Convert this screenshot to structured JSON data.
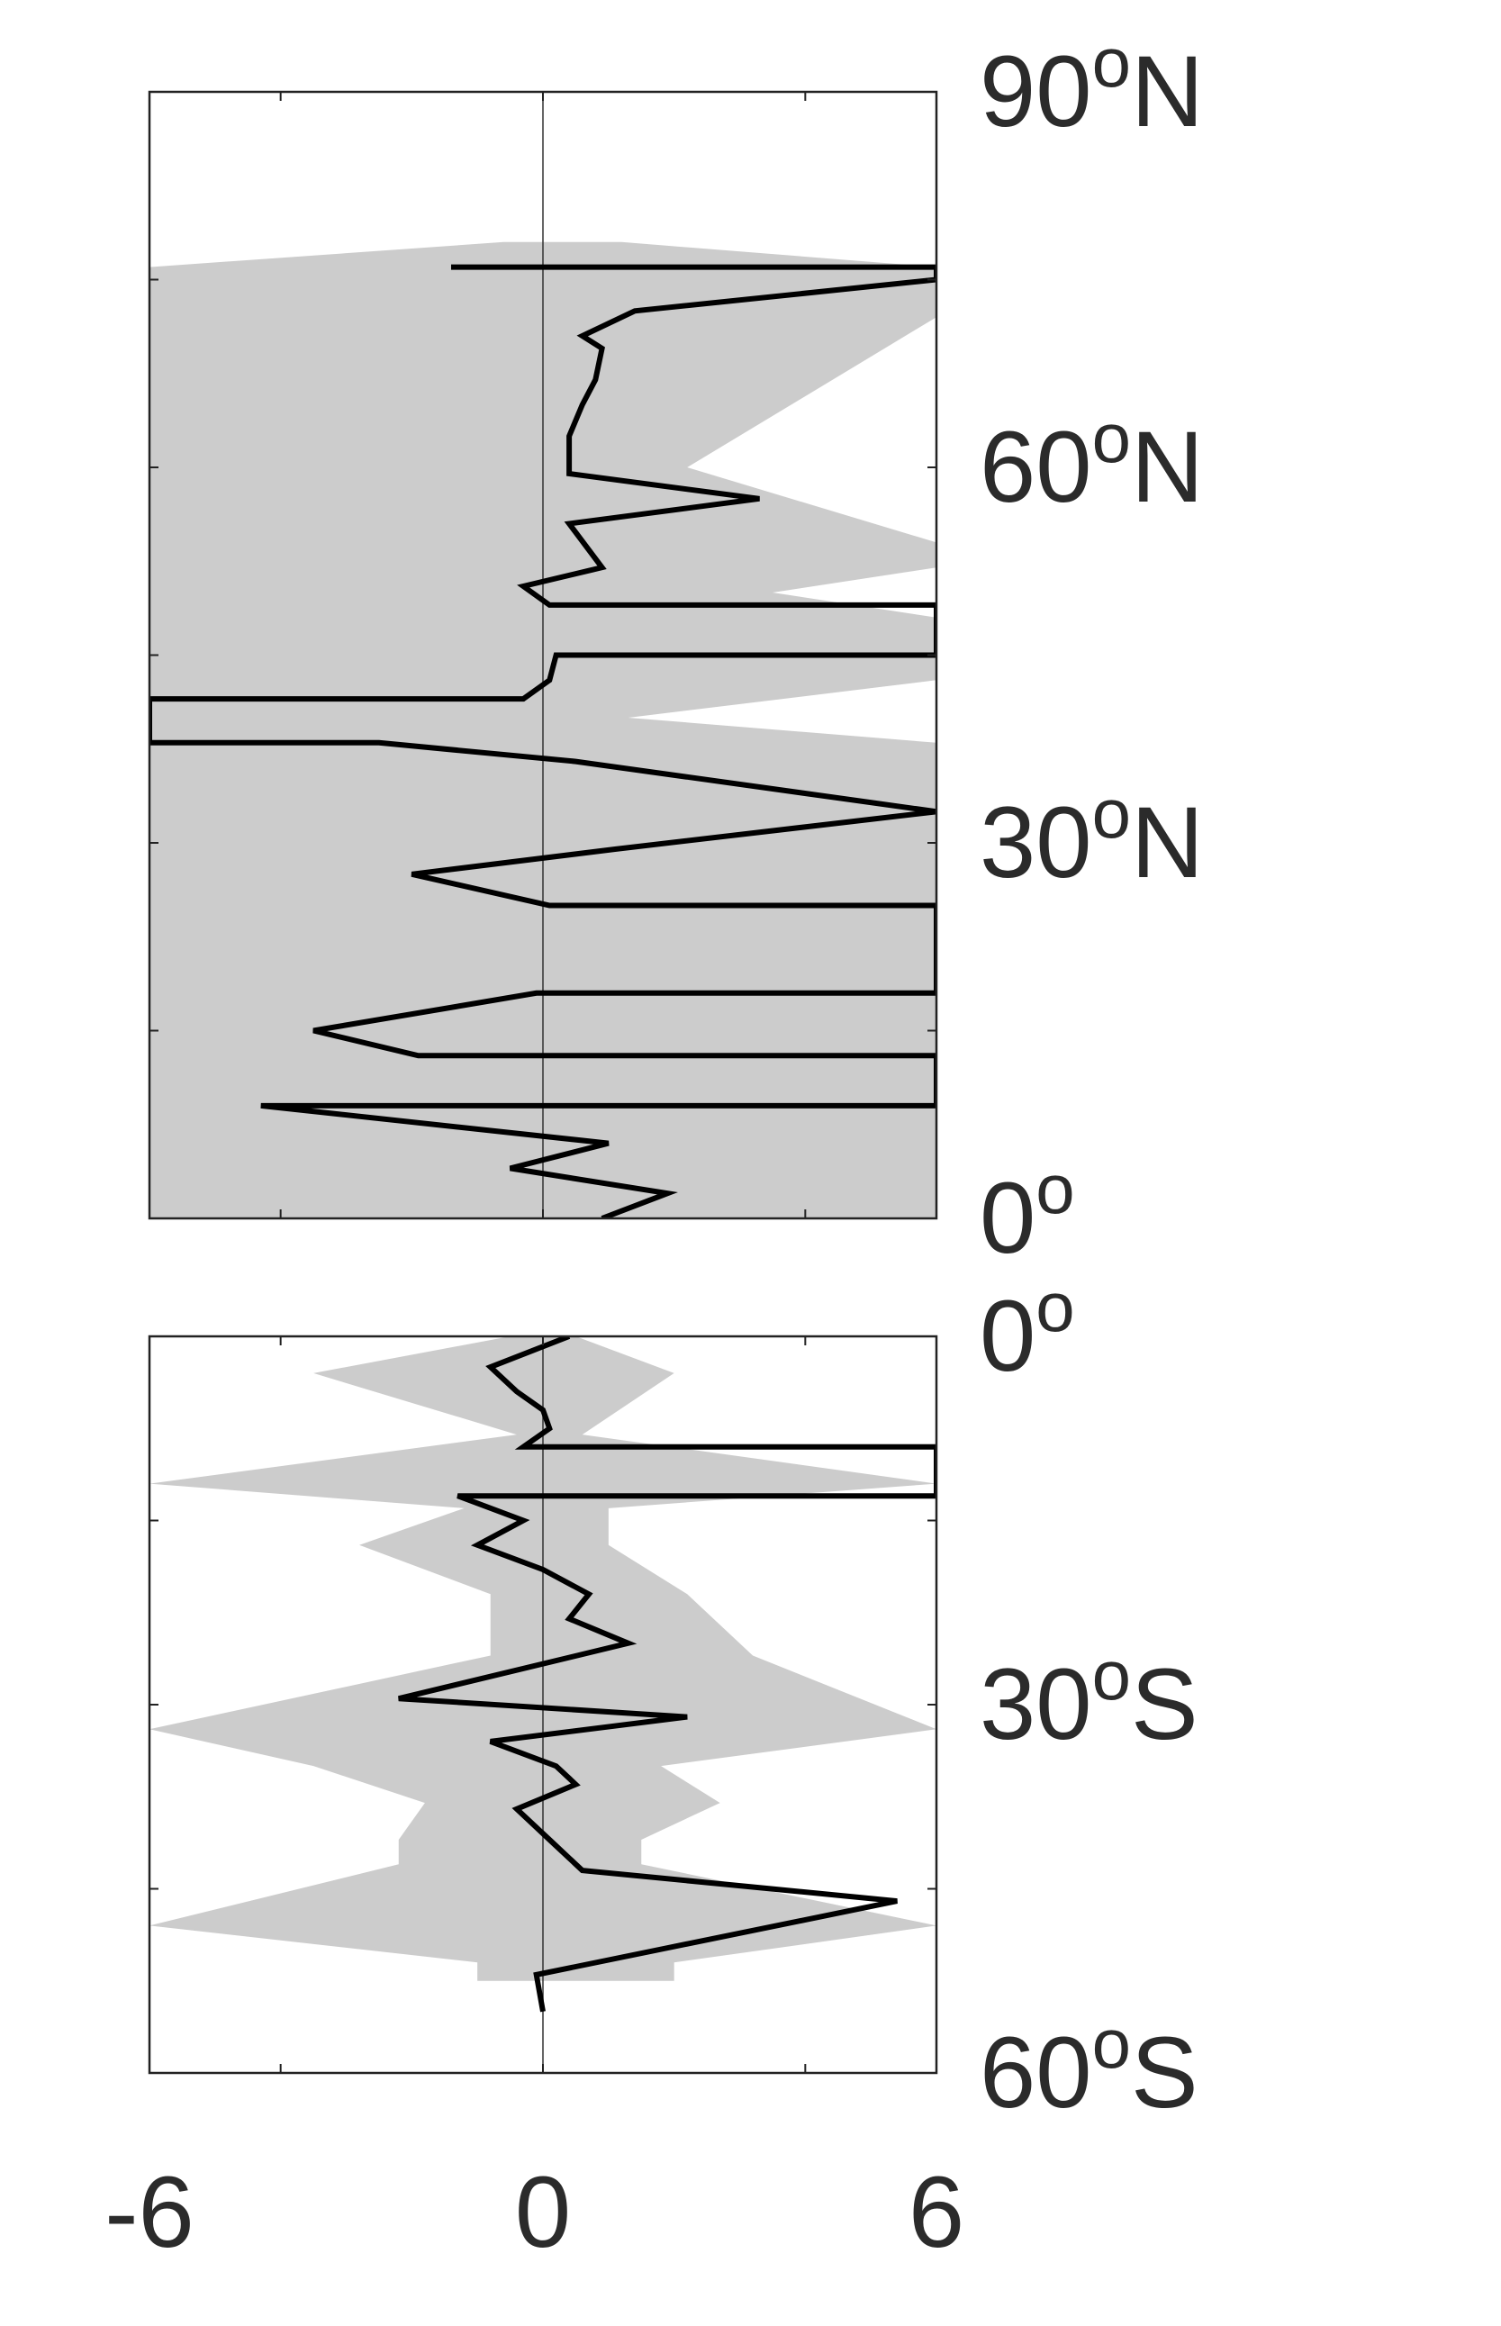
{
  "chart_data": [
    {
      "type": "line",
      "panel": "northern-hemisphere",
      "xlim": [
        -6,
        6
      ],
      "ylim": [
        0,
        90
      ],
      "xticks": [
        -6,
        0,
        6
      ],
      "ytick_labels": [
        {
          "value": 90,
          "num": "90",
          "sup": "o",
          "hemi": "N"
        },
        {
          "value": 60,
          "num": "60",
          "sup": "o",
          "hemi": "N"
        },
        {
          "value": 30,
          "num": "30",
          "sup": "o",
          "hemi": "N"
        },
        {
          "value": 0,
          "num": "0",
          "sup": "o",
          "hemi": ""
        }
      ],
      "grid": false,
      "zero_line": true,
      "series": [
        {
          "kind": "line",
          "color": "#000000",
          "x": [
            0.4,
            -1.4,
            6,
            6,
            1.4,
            0.6,
            0.9,
            0.8,
            0.6,
            0.4,
            0.4,
            3.3,
            0.4,
            0.9,
            -0.3,
            0.1,
            6,
            6,
            0.2,
            0.1,
            -0.3,
            -6,
            -6,
            -2.5,
            0.5,
            6,
            6,
            1.1,
            -2.0,
            0.1,
            6,
            6,
            -0.1,
            -3.5,
            -1.9,
            6,
            6,
            -4.3,
            1.0,
            -0.5,
            1.9,
            0.9
          ],
          "y": [
            76,
            76,
            76,
            75,
            72.5,
            70.5,
            69.5,
            67,
            65,
            62.5,
            59.5,
            57.5,
            55.5,
            52,
            50.5,
            49,
            49,
            45,
            45,
            43,
            41.5,
            41.5,
            38,
            38,
            36.5,
            32.5,
            32.5,
            29.5,
            27.5,
            25,
            25,
            18,
            18,
            15,
            13,
            13,
            9,
            9,
            6,
            4,
            2,
            0
          ]
        }
      ],
      "spread_band": {
        "kind": "area",
        "color": "#cccccc",
        "lower": [
          -0.6,
          -6,
          -6,
          -6,
          -6,
          -6,
          -6,
          -6,
          -6,
          -6,
          -6,
          -6,
          -6,
          -6,
          -6,
          -6,
          -6,
          -6,
          -6,
          -6,
          -6,
          -6,
          -6,
          -6,
          -6,
          -6
        ],
        "upper": [
          1.2,
          6,
          6,
          2.2,
          6,
          6,
          3.5,
          6,
          6,
          1.3,
          6,
          6,
          6,
          6,
          6,
          6,
          6,
          6,
          6,
          6,
          6,
          6,
          6,
          6,
          6,
          6
        ],
        "y": [
          78,
          76,
          72,
          60,
          54,
          52,
          50,
          48,
          43,
          40,
          38,
          36,
          33,
          29,
          27,
          24,
          21,
          18,
          16,
          14,
          11,
          9,
          6,
          4,
          2,
          0
        ]
      }
    },
    {
      "type": "line",
      "panel": "southern-hemisphere",
      "xlim": [
        -6,
        6
      ],
      "ylim": [
        -60,
        0
      ],
      "xticks": [
        -6,
        0,
        6
      ],
      "xtick_labels": [
        "-6",
        "0",
        "6"
      ],
      "ytick_labels": [
        {
          "value": 0,
          "num": "0",
          "sup": "o",
          "hemi": ""
        },
        {
          "value": -30,
          "num": "30",
          "sup": "o",
          "hemi": "S"
        },
        {
          "value": -60,
          "num": "60",
          "sup": "o",
          "hemi": "S"
        }
      ],
      "grid": false,
      "zero_line": true,
      "series": [
        {
          "kind": "line",
          "color": "#000000",
          "x": [
            0.4,
            -0.8,
            -0.4,
            0.0,
            0.1,
            -0.3,
            6,
            6,
            -1.3,
            -0.3,
            -1.0,
            0.0,
            0.7,
            0.4,
            1.3,
            -2.2,
            2.2,
            -0.8,
            0.2,
            0.5,
            -0.4,
            0.1,
            0.6,
            5.4,
            -0.1,
            0.0
          ],
          "y": [
            0,
            -2.5,
            -4.5,
            -6,
            -7.5,
            -9,
            -9,
            -13,
            -13,
            -15,
            -17,
            -19,
            -21,
            -23,
            -25,
            -29.5,
            -31,
            -33,
            -35,
            -36.5,
            -38.5,
            -41,
            -43.5,
            -46,
            -52,
            -55
          ]
        }
      ],
      "spread_band": {
        "kind": "area",
        "color": "#cccccc",
        "lower": [
          -0.5,
          -3.5,
          -0.4,
          -6,
          -1.2,
          -2.8,
          -0.8,
          -0.8,
          -6,
          -3.5,
          -1.8,
          -2.2,
          -2.2,
          -6,
          -1.0,
          -1.0
        ],
        "upper": [
          0.5,
          2.0,
          0.6,
          6,
          1.0,
          1.0,
          2.2,
          3.2,
          6,
          1.8,
          2.7,
          1.5,
          1.5,
          6,
          2.0,
          2.0
        ],
        "y": [
          0,
          -3,
          -8,
          -12,
          -14,
          -17,
          -21,
          -26,
          -32,
          -35,
          -38,
          -41,
          -43,
          -48,
          -51,
          -52.5
        ]
      }
    }
  ]
}
